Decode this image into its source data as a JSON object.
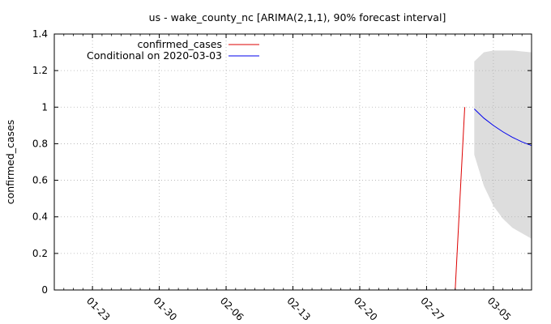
{
  "chart_data": {
    "type": "line",
    "title": "us - wake_county_nc [ARIMA(2,1,1), 90% forecast interval]",
    "xlabel": "",
    "ylabel": "confirmed_cases",
    "x_axis": {
      "type": "date",
      "range": [
        "2020-01-19",
        "2020-03-09"
      ],
      "ticks": [
        {
          "date": "2020-01-23",
          "label": "01-23"
        },
        {
          "date": "2020-01-30",
          "label": "01-30"
        },
        {
          "date": "2020-02-06",
          "label": "02-06"
        },
        {
          "date": "2020-02-13",
          "label": "02-13"
        },
        {
          "date": "2020-02-20",
          "label": "02-20"
        },
        {
          "date": "2020-02-27",
          "label": "02-27"
        },
        {
          "date": "2020-03-05",
          "label": "03-05"
        }
      ]
    },
    "y_axis": {
      "range": [
        0,
        1.4
      ],
      "ticks": [
        {
          "value": 0,
          "label": "0"
        },
        {
          "value": 0.2,
          "label": "0.2"
        },
        {
          "value": 0.4,
          "label": "0.4"
        },
        {
          "value": 0.6,
          "label": "0.6"
        },
        {
          "value": 0.8,
          "label": "0.8"
        },
        {
          "value": 1,
          "label": "1"
        },
        {
          "value": 1.2,
          "label": "1.2"
        },
        {
          "value": 1.4,
          "label": "1.4"
        }
      ]
    },
    "grid": true,
    "legend_position": "top-left",
    "series": [
      {
        "name": "confirmed_cases",
        "color": "#dd0000",
        "points": [
          [
            "2020-03-01",
            0
          ],
          [
            "2020-03-02",
            1
          ]
        ]
      },
      {
        "name": "Conditional on 2020-03-03",
        "color": "#0000ee",
        "points": [
          [
            "2020-03-03",
            0.99
          ],
          [
            "2020-03-04",
            0.94
          ],
          [
            "2020-03-05",
            0.9
          ],
          [
            "2020-03-06",
            0.865
          ],
          [
            "2020-03-07",
            0.835
          ],
          [
            "2020-03-08",
            0.81
          ],
          [
            "2020-03-09",
            0.79
          ]
        ]
      }
    ],
    "forecast_interval": {
      "level": "90%",
      "color": "#dddddd",
      "dates": [
        "2020-03-03",
        "2020-03-04",
        "2020-03-05",
        "2020-03-06",
        "2020-03-07",
        "2020-03-08",
        "2020-03-09"
      ],
      "lower": [
        0.74,
        0.57,
        0.46,
        0.39,
        0.34,
        0.31,
        0.28
      ],
      "upper": [
        1.25,
        1.3,
        1.31,
        1.31,
        1.31,
        1.305,
        1.3
      ]
    }
  }
}
